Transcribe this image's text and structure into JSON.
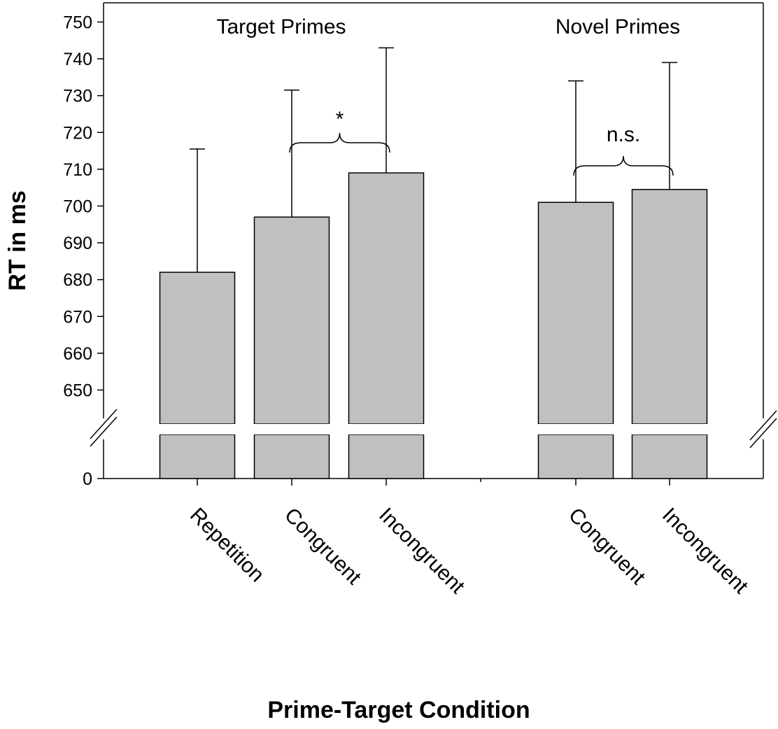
{
  "chart_data": {
    "type": "bar",
    "ylabel": "RT in ms",
    "xlabel": "Prime-Target Condition",
    "ylim": [
      640,
      750
    ],
    "axis_break": {
      "lower_tick": 0,
      "upper_start": 640
    },
    "yticks_upper": [
      650,
      660,
      670,
      680,
      690,
      700,
      710,
      720,
      730,
      740,
      750
    ],
    "ytick_lower": 0,
    "groups": [
      {
        "name": "Target Primes",
        "bars": [
          {
            "category": "Repetition",
            "value": 682,
            "error": 33.5
          },
          {
            "category": "Congruent",
            "value": 697,
            "error": 34.5
          },
          {
            "category": "Incongruent",
            "value": 709,
            "error": 34
          }
        ],
        "significance": {
          "label": "*",
          "from": 1,
          "to": 2
        }
      },
      {
        "name": "Novel Primes",
        "bars": [
          {
            "category": "Congruent",
            "value": 701,
            "error": 33
          },
          {
            "category": "Incongruent",
            "value": 704.5,
            "error": 34.5
          }
        ],
        "significance": {
          "label": "n.s.",
          "from": 0,
          "to": 1
        }
      }
    ],
    "colors": {
      "bar": "#c0c0c0",
      "bar_stroke": "#000000",
      "axis": "#000000"
    },
    "grid": false,
    "legend": "none"
  }
}
